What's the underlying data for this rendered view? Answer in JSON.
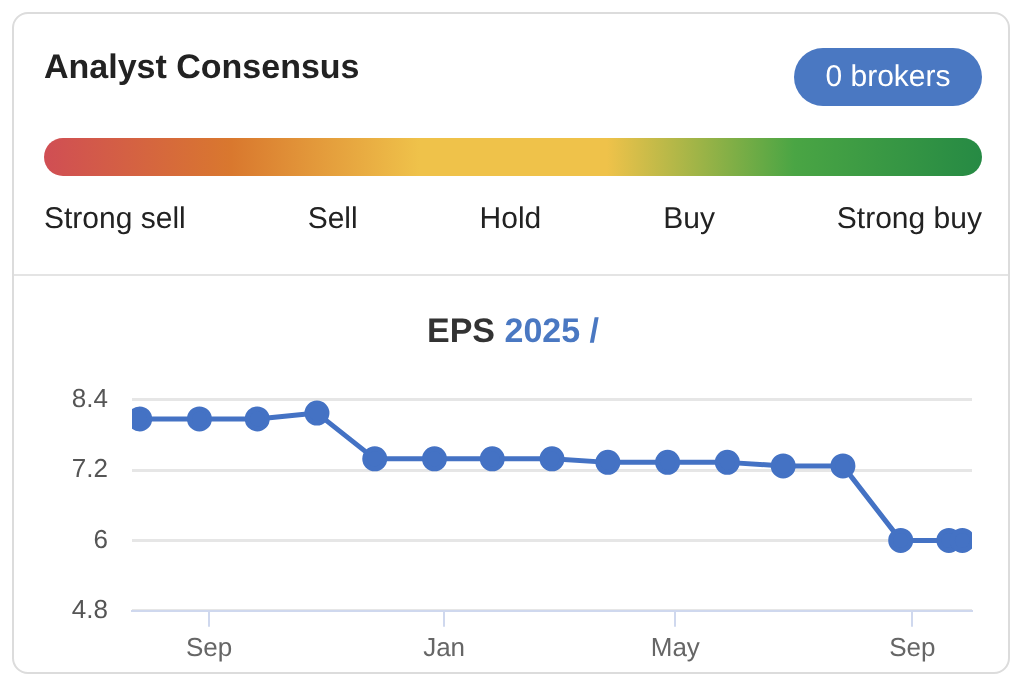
{
  "chart_data": [
    {
      "type": "other",
      "title": "Analyst Consensus",
      "annotations": [
        "0 brokers",
        "Strong sell",
        "Sell",
        "Hold",
        "Buy",
        "Strong buy"
      ]
    },
    {
      "type": "line",
      "title": "EPS 2025 /",
      "x": [
        "2024-07-27",
        "2024-08-27",
        "2024-09-26",
        "2024-10-27",
        "2024-11-26",
        "2024-12-27",
        "2025-01-26",
        "2025-02-26",
        "2025-03-27",
        "2025-04-27",
        "2025-05-28",
        "2025-06-26",
        "2025-07-27",
        "2025-08-26",
        "2025-09-20",
        "2025-09-27"
      ],
      "series": [
        {
          "color": "#4472c4",
          "values": [
            8.07,
            8.07,
            8.07,
            8.17,
            7.39,
            7.39,
            7.39,
            7.39,
            7.33,
            7.33,
            7.33,
            7.27,
            7.27,
            6.0,
            6.0,
            6.0
          ]
        }
      ],
      "xlim": [
        "2024-07-23",
        "2025-10-02"
      ],
      "xticks": [
        {
          "value": "2024-09-01",
          "label": "Sep"
        },
        {
          "value": "2025-01-01",
          "label": "Jan"
        },
        {
          "value": "2025-05-01",
          "label": "May"
        },
        {
          "value": "2025-09-01",
          "label": "Sep"
        }
      ],
      "ylim": [
        4.8,
        8.4
      ],
      "yticks": [
        4.8,
        6,
        7.2,
        8.4
      ],
      "grid": "y",
      "marker": "circle",
      "line_style": "solid"
    }
  ]
}
